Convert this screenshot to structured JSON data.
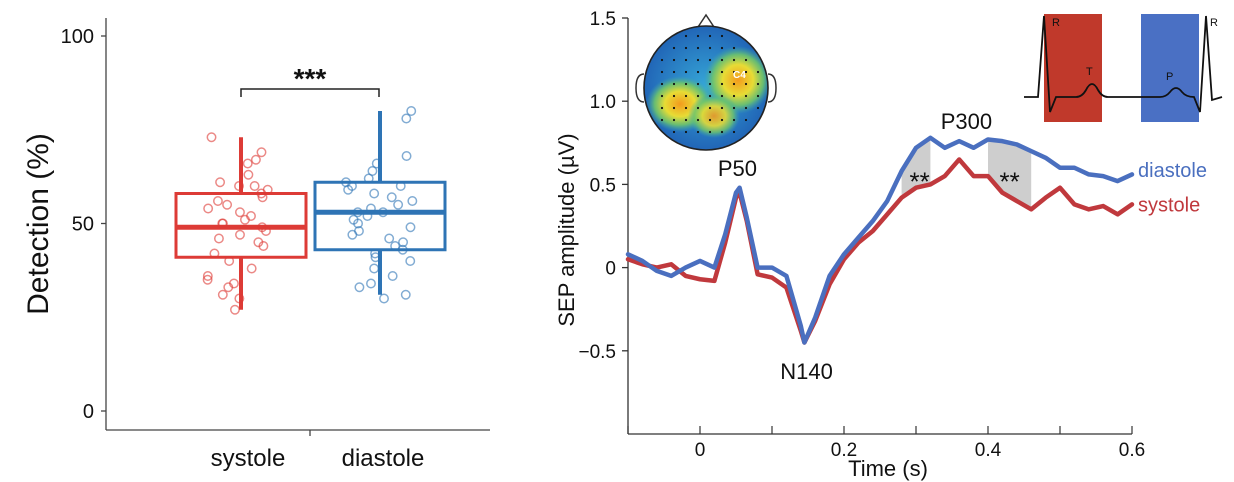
{
  "chart_data": [
    {
      "type": "box",
      "ylabel": "Detection (%)",
      "ylim": [
        0,
        100
      ],
      "yticks": [
        0,
        50,
        100
      ],
      "categories": [
        "systole",
        "diastole"
      ],
      "colors": {
        "systole": "#dd3b36",
        "diastole": "#2e74b5"
      },
      "significance": "***",
      "series": [
        {
          "name": "systole",
          "box": {
            "whisker_low": 27,
            "q1": 41,
            "median": 49,
            "q3": 58,
            "whisker_high": 73
          },
          "points": [
            73,
            69,
            67,
            66,
            63,
            61,
            60,
            60,
            59,
            58,
            57,
            56,
            55,
            54,
            53,
            52,
            51,
            50,
            50,
            49,
            48,
            47,
            46,
            45,
            44,
            42,
            40,
            38,
            36,
            35,
            34,
            33,
            31,
            30,
            27
          ]
        },
        {
          "name": "diastole",
          "box": {
            "whisker_low": 31,
            "q1": 43,
            "median": 53,
            "q3": 61,
            "whisker_high": 80
          },
          "points": [
            80,
            78,
            68,
            66,
            64,
            62,
            61,
            60,
            60,
            59,
            58,
            57,
            56,
            55,
            54,
            53,
            53,
            52,
            51,
            50,
            49,
            48,
            47,
            46,
            45,
            44,
            43,
            42,
            41,
            40,
            38,
            36,
            34,
            33,
            31,
            30
          ]
        }
      ]
    },
    {
      "type": "line",
      "xlabel": "Time (s)",
      "ylabel": "SEP amplitude (µV)",
      "xlim": [
        -0.1,
        0.6
      ],
      "ylim": [
        -1.0,
        1.5
      ],
      "xticks": [
        0,
        0.2,
        0.4,
        0.6
      ],
      "xtick_labels": [
        "0",
        "0.2",
        "0.4",
        "0.6"
      ],
      "yticks": [
        -0.5,
        0,
        0.5,
        1.0,
        1.5
      ],
      "ytick_labels": [
        "−0.5",
        "0",
        "0.5",
        "1.0",
        "1.5"
      ],
      "colors": {
        "diastole": "#4a6fbf",
        "systole": "#c0393d"
      },
      "series": [
        {
          "name": "diastole",
          "x": [
            -0.1,
            -0.08,
            -0.06,
            -0.04,
            -0.02,
            0,
            0.02,
            0.035,
            0.05,
            0.055,
            0.065,
            0.08,
            0.1,
            0.12,
            0.14,
            0.145,
            0.16,
            0.18,
            0.2,
            0.22,
            0.24,
            0.26,
            0.28,
            0.3,
            0.32,
            0.34,
            0.36,
            0.38,
            0.4,
            0.42,
            0.44,
            0.46,
            0.48,
            0.5,
            0.52,
            0.54,
            0.56,
            0.58,
            0.6
          ],
          "y": [
            0.08,
            0.04,
            -0.02,
            -0.05,
            0.0,
            0.04,
            0.0,
            0.2,
            0.45,
            0.48,
            0.3,
            0.0,
            0.0,
            -0.05,
            -0.35,
            -0.45,
            -0.3,
            -0.05,
            0.08,
            0.18,
            0.28,
            0.4,
            0.58,
            0.72,
            0.78,
            0.72,
            0.76,
            0.72,
            0.77,
            0.76,
            0.74,
            0.7,
            0.66,
            0.6,
            0.6,
            0.56,
            0.55,
            0.52,
            0.56
          ]
        },
        {
          "name": "systole",
          "x": [
            -0.1,
            -0.08,
            -0.06,
            -0.04,
            -0.02,
            0,
            0.02,
            0.035,
            0.05,
            0.055,
            0.065,
            0.08,
            0.1,
            0.12,
            0.14,
            0.145,
            0.16,
            0.18,
            0.2,
            0.22,
            0.24,
            0.26,
            0.28,
            0.3,
            0.32,
            0.34,
            0.36,
            0.38,
            0.4,
            0.42,
            0.44,
            0.46,
            0.48,
            0.5,
            0.52,
            0.54,
            0.56,
            0.58,
            0.6
          ],
          "y": [
            0.05,
            0.02,
            0.0,
            0.02,
            -0.05,
            -0.07,
            -0.08,
            0.15,
            0.42,
            0.45,
            0.28,
            -0.04,
            -0.06,
            -0.12,
            -0.38,
            -0.45,
            -0.32,
            -0.1,
            0.05,
            0.15,
            0.22,
            0.32,
            0.42,
            0.48,
            0.5,
            0.55,
            0.65,
            0.55,
            0.55,
            0.45,
            0.4,
            0.35,
            0.42,
            0.48,
            0.38,
            0.35,
            0.37,
            0.32,
            0.38
          ]
        }
      ],
      "annotations": [
        {
          "text": "P50",
          "x": 0.052,
          "y": 0.6
        },
        {
          "text": "N140",
          "x": 0.148,
          "y": -0.62
        },
        {
          "text": "P300",
          "x": 0.37,
          "y": 0.88
        }
      ],
      "significance": [
        {
          "text": "**",
          "x_range": [
            0.28,
            0.33
          ]
        },
        {
          "text": "**",
          "x_range": [
            0.39,
            0.47
          ]
        }
      ],
      "inset_topomap": {
        "electrode": "C4"
      },
      "inset_ecg": {
        "labels": [
          "R",
          "T",
          "P",
          "R"
        ],
        "colors": {
          "systole": "#c0392b",
          "diastole": "#4a70c4"
        }
      }
    }
  ]
}
